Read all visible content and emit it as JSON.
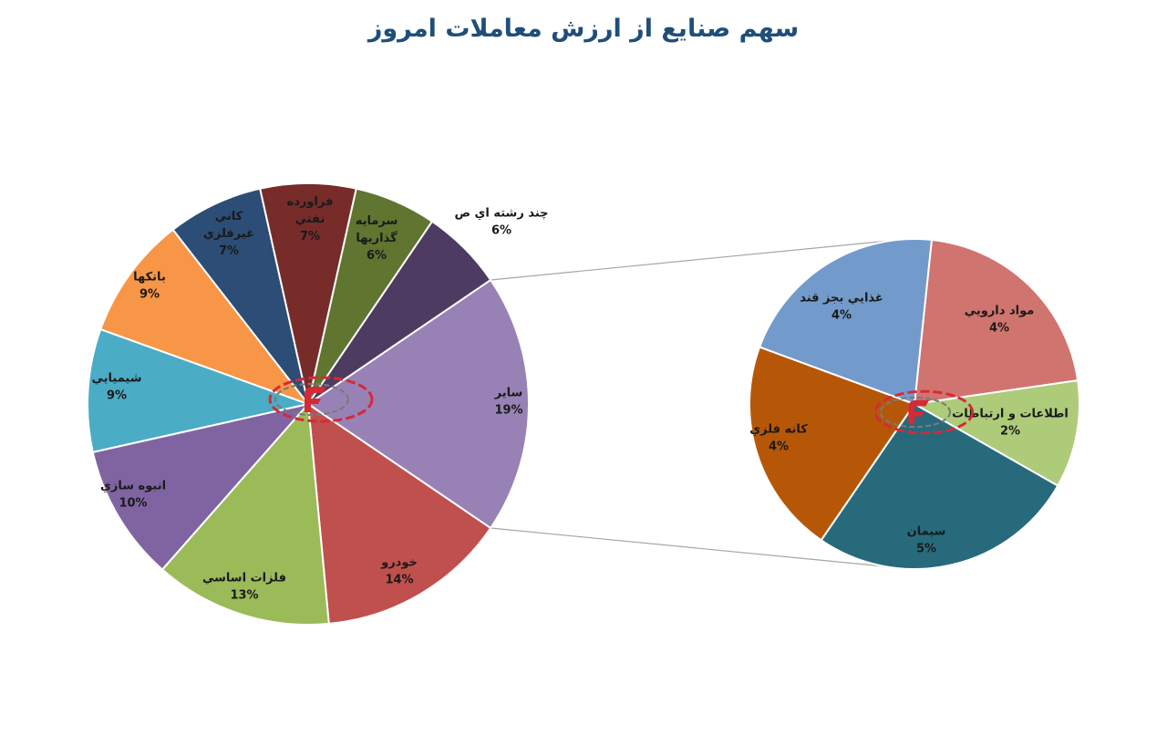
{
  "title": "سهم صنایع از ارزش معاملات امروز",
  "chart_data": [
    {
      "type": "pie",
      "label": "main",
      "unit": "%",
      "slices": [
        {
          "name": "ساير",
          "value": 19,
          "label_lines": [
            "ساير"
          ],
          "pct_text": "19%",
          "color": "#9882b5"
        },
        {
          "name": "خودرو",
          "value": 14,
          "label_lines": [
            "خودرو"
          ],
          "pct_text": "14%",
          "color": "#c0504d"
        },
        {
          "name": "فلزات اساسي",
          "value": 13,
          "label_lines": [
            "فلزات اساسي"
          ],
          "pct_text": "13%",
          "color": "#9bbb59"
        },
        {
          "name": "انبوه سازي",
          "value": 10,
          "label_lines": [
            "انبوه سازي"
          ],
          "pct_text": "10%",
          "color": "#8064a2"
        },
        {
          "name": "شيميايي",
          "value": 9,
          "label_lines": [
            "شيميايي"
          ],
          "pct_text": "9%",
          "color": "#4bacc6"
        },
        {
          "name": "بانكها",
          "value": 9,
          "label_lines": [
            "بانكها"
          ],
          "pct_text": "9%",
          "color": "#f79646"
        },
        {
          "name": "كاني غيرفلزي",
          "value": 7,
          "label_lines": [
            "كاني",
            "غيرفلزي"
          ],
          "pct_text": "7%",
          "color": "#2c4d75"
        },
        {
          "name": "فراورده نفتي",
          "value": 7,
          "label_lines": [
            "فراورده",
            "نفتي"
          ],
          "pct_text": "7%",
          "color": "#772c2a"
        },
        {
          "name": "سرمايه گذاريها",
          "value": 6,
          "label_lines": [
            "سرمايه",
            "گذاريها"
          ],
          "pct_text": "6%",
          "color": "#5f7530"
        },
        {
          "name": "چند رشته اي ص",
          "value": 6,
          "label_lines": [
            "چند رشته اي ص"
          ],
          "pct_text": "6%",
          "color": "#4d3b62"
        }
      ]
    },
    {
      "type": "pie",
      "label": "ساير breakdown",
      "unit": "%",
      "slices": [
        {
          "name": "مواد دارويي",
          "value": 4,
          "label_lines": [
            "مواد دارويي"
          ],
          "pct_text": "4%",
          "color": "#d07470"
        },
        {
          "name": "اطلاعات و ارتباطات",
          "value": 2,
          "label_lines": [
            "اطلاعات و ارتباطات"
          ],
          "pct_text": "2%",
          "color": "#aecb7a"
        },
        {
          "name": "سيمان",
          "value": 5,
          "label_lines": [
            "سيمان"
          ],
          "pct_text": "5%",
          "color": "#276a7c"
        },
        {
          "name": "كانه فلزي",
          "value": 4,
          "label_lines": [
            "كانه فلزي"
          ],
          "pct_text": "4%",
          "color": "#b65708"
        },
        {
          "name": "غذايي بجز قند",
          "value": 4,
          "label_lines": [
            "غذايي بجز قند"
          ],
          "pct_text": "4%",
          "color": "#729aca"
        }
      ]
    }
  ]
}
